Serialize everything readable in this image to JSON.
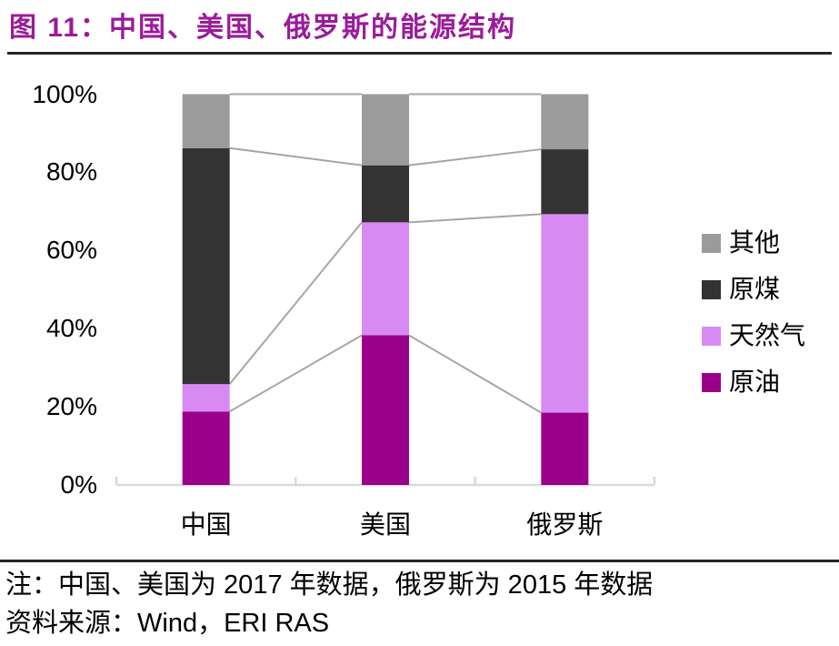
{
  "header": {
    "title": "图 11：中国、美国、俄罗斯的能源结构"
  },
  "chart_data": {
    "type": "bar",
    "stacked": true,
    "percent": true,
    "title": "中国、美国、俄罗斯的能源结构",
    "categories": [
      "中国",
      "美国",
      "俄罗斯"
    ],
    "series": [
      {
        "name": "原油",
        "color": "#9a008a",
        "values": [
          18.8,
          38.3,
          18.5
        ]
      },
      {
        "name": "天然气",
        "color": "#d88af3",
        "values": [
          7.0,
          28.9,
          50.8
        ]
      },
      {
        "name": "原煤",
        "color": "#333333",
        "values": [
          60.4,
          14.6,
          16.6
        ]
      },
      {
        "name": "其他",
        "color": "#9b9b9b",
        "values": [
          13.8,
          18.2,
          14.1
        ]
      }
    ],
    "y_ticks": [
      0,
      20,
      40,
      60,
      80,
      100
    ],
    "y_tick_suffix": "%",
    "ylim": [
      0,
      100
    ],
    "grid": false,
    "legend_position": "right",
    "legend_order_top_to_bottom": [
      "其他",
      "原煤",
      "天然气",
      "原油"
    ],
    "colors": {
      "connector_line": "#a6a6a6",
      "axis_line": "#d9d9d9"
    }
  },
  "footer": {
    "note": "注：中国、美国为 2017 年数据，俄罗斯为 2015 年数据",
    "source": "资料来源：Wind，ERI RAS"
  },
  "theme": {
    "title_color": "#9a1b9a",
    "rule_color": "#262626",
    "text_color": "#000000",
    "background": "#ffffff"
  }
}
